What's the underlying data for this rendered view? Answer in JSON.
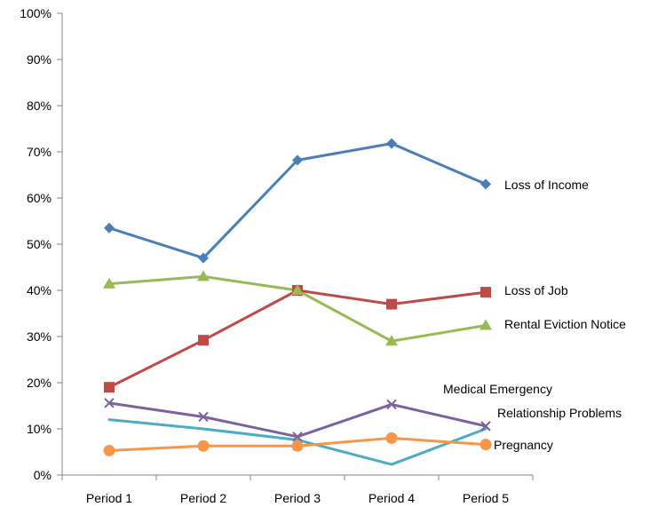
{
  "chart_data": {
    "type": "line",
    "categories": [
      "Period 1",
      "Period 2",
      "Period 3",
      "Period 4",
      "Period 5"
    ],
    "ylim": [
      0,
      100
    ],
    "yticks": [
      "0%",
      "10%",
      "20%",
      "30%",
      "40%",
      "50%",
      "60%",
      "70%",
      "80%",
      "90%",
      "100%"
    ],
    "grid": false,
    "legend": "inline labels at right end of lines",
    "series": [
      {
        "name": "Loss of Income",
        "values": [
          53.5,
          47,
          68.2,
          71.8,
          63
        ],
        "color": "#4A7EBB",
        "marker": "diamond"
      },
      {
        "name": "Loss of Job",
        "values": [
          19,
          29.2,
          40,
          37,
          39.6
        ],
        "color": "#BE4B48",
        "marker": "square"
      },
      {
        "name": "Rental Eviction Notice",
        "values": [
          41.4,
          43,
          40,
          29,
          32.4
        ],
        "color": "#98B954",
        "marker": "triangle"
      },
      {
        "name": "Medical Emergency",
        "values": [
          12,
          10,
          7.6,
          2.3,
          10
        ],
        "color": "#4BACC6",
        "marker": "none"
      },
      {
        "name": "Relationship Problems",
        "values": [
          15.6,
          12.6,
          8.3,
          15.3,
          10.6
        ],
        "color": "#7D60A0",
        "marker": "x"
      },
      {
        "name": "Pregnancy",
        "values": [
          5.3,
          6.3,
          6.3,
          8,
          6.6
        ],
        "color": "#F79646",
        "marker": "circle"
      }
    ]
  }
}
